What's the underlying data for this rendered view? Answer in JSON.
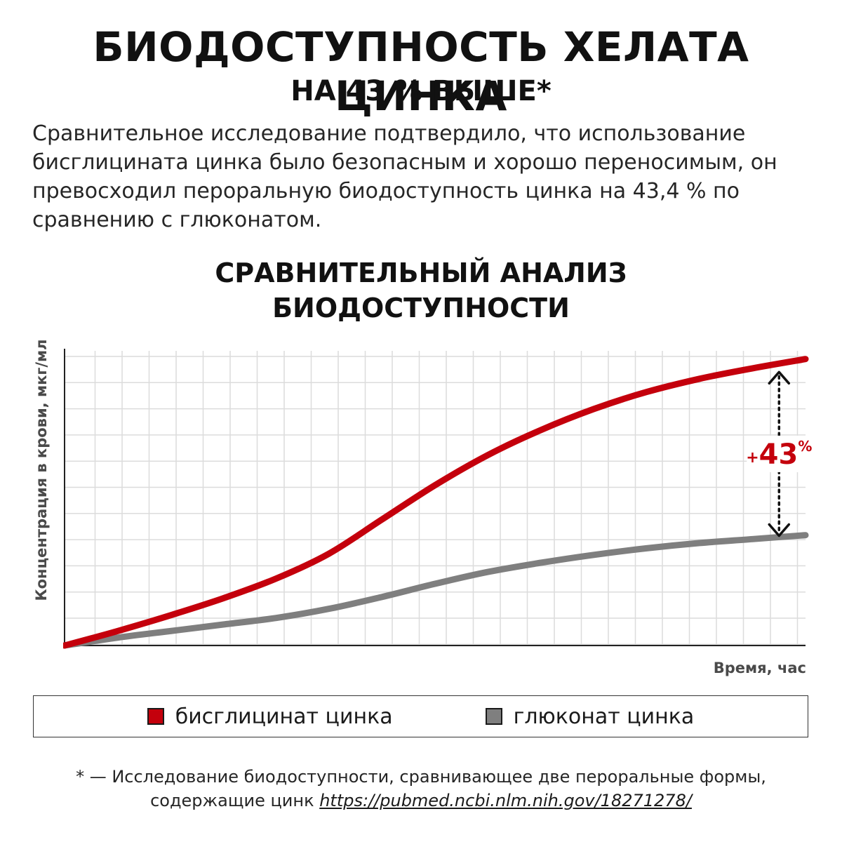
{
  "header": {
    "title": "БИОДОСТУПНОСТЬ ХЕЛАТА ЦИНКА",
    "subtitle": "НА 43 % ВЫШЕ*"
  },
  "description": "Сравнительное исследование подтвердило, что использование бисглицината цинка было безопасным и хорошо переносимым, он превосходил пероральную биодоступность цинка на 43,4 % по сравнению с глюконатом.",
  "chart_title": {
    "line1": "СРАВНИТЕЛЬНЫЙ АНАЛИЗ",
    "line2": "БИОДОСТУПНОСТИ"
  },
  "colors": {
    "bisglycinate": "#c4000c",
    "gluconate": "#7f7f7f",
    "grid": "#dcdcdc",
    "axis": "#222222"
  },
  "chart_data": {
    "type": "line",
    "title": "СРАВНИТЕЛЬНЫЙ АНАЛИЗ БИОДОСТУПНОСТИ",
    "xlabel": "Время, час",
    "ylabel": "Концентрация в крови, мкг/мл",
    "xlim": [
      0,
      28
    ],
    "ylim": [
      0,
      11
    ],
    "grid": true,
    "legend_position": "bottom",
    "series": [
      {
        "name": "бисглицинат цинка",
        "x": [
          0,
          2,
          4,
          6,
          8,
          10,
          12,
          14,
          16,
          18,
          20,
          22,
          24,
          26,
          28
        ],
        "values": [
          0,
          0.55,
          1.15,
          1.8,
          2.55,
          3.5,
          4.8,
          6.1,
          7.25,
          8.2,
          9.0,
          9.65,
          10.15,
          10.55,
          10.9
        ]
      },
      {
        "name": "глюконат цинка",
        "x": [
          0,
          2,
          4,
          6,
          8,
          10,
          12,
          14,
          16,
          18,
          20,
          22,
          24,
          26,
          28
        ],
        "values": [
          0,
          0.3,
          0.55,
          0.8,
          1.05,
          1.4,
          1.85,
          2.35,
          2.8,
          3.15,
          3.45,
          3.7,
          3.9,
          4.05,
          4.2
        ]
      }
    ],
    "annotation": {
      "sign": "+",
      "value": "43",
      "unit": "%",
      "x": 27
    }
  },
  "legend": {
    "items": [
      {
        "label": "бисглицинат цинка"
      },
      {
        "label": "глюконат цинка"
      }
    ]
  },
  "footnote": {
    "line1": "* — Исследование биодоступности, сравнивающее две пероральные формы,",
    "line2_text": "содержащие цинк ",
    "link": "https://pubmed.ncbi.nlm.nih.gov/18271278/"
  }
}
